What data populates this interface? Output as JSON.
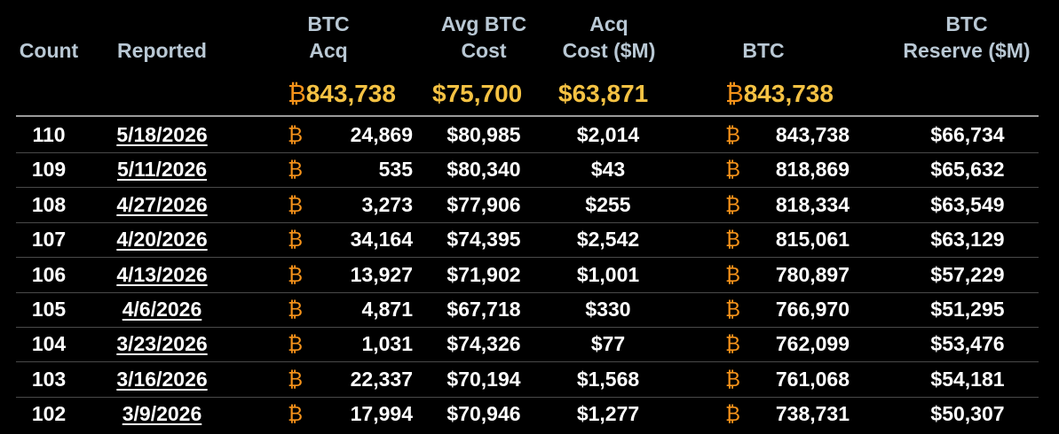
{
  "headers": {
    "count": [
      "Count"
    ],
    "reported": [
      "Reported"
    ],
    "btc_acq": [
      "BTC",
      "Acq"
    ],
    "avg_cost": [
      "Avg BTC",
      "Cost"
    ],
    "acq_cost": [
      "Acq",
      "Cost ($M)"
    ],
    "btc": [
      "BTC"
    ],
    "reserve": [
      "BTC",
      "Reserve ($M)"
    ]
  },
  "btc_symbol": "₿",
  "totals": {
    "btc_acq": "843,738",
    "avg_cost": "$75,700",
    "acq_cost": "$63,871",
    "btc": "843,738"
  },
  "rows": [
    {
      "count": "110",
      "date": "5/18/2026",
      "acq": "24,869",
      "avg": "$80,985",
      "cost": "$2,014",
      "btc": "843,738",
      "reserve": "$66,734"
    },
    {
      "count": "109",
      "date": "5/11/2026",
      "acq": "535",
      "avg": "$80,340",
      "cost": "$43",
      "btc": "818,869",
      "reserve": "$65,632"
    },
    {
      "count": "108",
      "date": "4/27/2026",
      "acq": "3,273",
      "avg": "$77,906",
      "cost": "$255",
      "btc": "818,334",
      "reserve": "$63,549"
    },
    {
      "count": "107",
      "date": "4/20/2026",
      "acq": "34,164",
      "avg": "$74,395",
      "cost": "$2,542",
      "btc": "815,061",
      "reserve": "$63,129"
    },
    {
      "count": "106",
      "date": "4/13/2026",
      "acq": "13,927",
      "avg": "$71,902",
      "cost": "$1,001",
      "btc": "780,897",
      "reserve": "$57,229"
    },
    {
      "count": "105",
      "date": "4/6/2026",
      "acq": "4,871",
      "avg": "$67,718",
      "cost": "$330",
      "btc": "766,970",
      "reserve": "$51,295"
    },
    {
      "count": "104",
      "date": "3/23/2026",
      "acq": "1,031",
      "avg": "$74,326",
      "cost": "$77",
      "btc": "762,099",
      "reserve": "$53,476"
    },
    {
      "count": "103",
      "date": "3/16/2026",
      "acq": "22,337",
      "avg": "$70,194",
      "cost": "$1,568",
      "btc": "761,068",
      "reserve": "$54,181"
    },
    {
      "count": "102",
      "date": "3/9/2026",
      "acq": "17,994",
      "avg": "$70,946",
      "cost": "$1,277",
      "btc": "738,731",
      "reserve": "$50,307"
    }
  ],
  "colors": {
    "background": "#000000",
    "header": "#b9c8d4",
    "totals": "#f5c243",
    "btc_orange": "#f7931a",
    "text": "#ffffff"
  }
}
